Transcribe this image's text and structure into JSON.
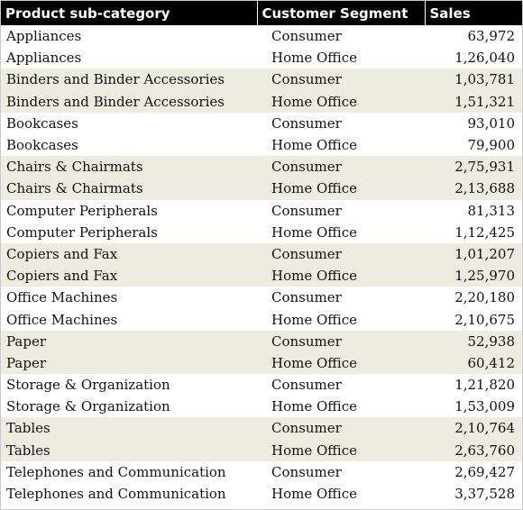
{
  "headers": {
    "subcategory": "Product sub-category",
    "segment": "Customer Segment",
    "sales": "Sales"
  },
  "rows": [
    {
      "subcategory": "Appliances",
      "segment": "Consumer",
      "sales": "63,972"
    },
    {
      "subcategory": "Appliances",
      "segment": "Home Office",
      "sales": "1,26,040"
    },
    {
      "subcategory": "Binders and Binder Accessories",
      "segment": "Consumer",
      "sales": "1,03,781"
    },
    {
      "subcategory": "Binders and Binder Accessories",
      "segment": "Home Office",
      "sales": "1,51,321"
    },
    {
      "subcategory": "Bookcases",
      "segment": "Consumer",
      "sales": "93,010"
    },
    {
      "subcategory": "Bookcases",
      "segment": "Home Office",
      "sales": "79,900"
    },
    {
      "subcategory": "Chairs & Chairmats",
      "segment": "Consumer",
      "sales": "2,75,931"
    },
    {
      "subcategory": "Chairs & Chairmats",
      "segment": "Home Office",
      "sales": "2,13,688"
    },
    {
      "subcategory": "Computer Peripherals",
      "segment": "Consumer",
      "sales": "81,313"
    },
    {
      "subcategory": "Computer Peripherals",
      "segment": "Home Office",
      "sales": "1,12,425"
    },
    {
      "subcategory": "Copiers and Fax",
      "segment": "Consumer",
      "sales": "1,01,207"
    },
    {
      "subcategory": "Copiers and Fax",
      "segment": "Home Office",
      "sales": "1,25,970"
    },
    {
      "subcategory": "Office Machines",
      "segment": "Consumer",
      "sales": "2,20,180"
    },
    {
      "subcategory": "Office Machines",
      "segment": "Home Office",
      "sales": "2,10,675"
    },
    {
      "subcategory": "Paper",
      "segment": "Consumer",
      "sales": "52,938"
    },
    {
      "subcategory": "Paper",
      "segment": "Home Office",
      "sales": "60,412"
    },
    {
      "subcategory": "Storage & Organization",
      "segment": "Consumer",
      "sales": "1,21,820"
    },
    {
      "subcategory": "Storage & Organization",
      "segment": "Home Office",
      "sales": "1,53,009"
    },
    {
      "subcategory": "Tables",
      "segment": "Consumer",
      "sales": "2,10,764"
    },
    {
      "subcategory": "Tables",
      "segment": "Home Office",
      "sales": "2,63,760"
    },
    {
      "subcategory": "Telephones and Communication",
      "segment": "Consumer",
      "sales": "2,69,427"
    },
    {
      "subcategory": "Telephones and Communication",
      "segment": "Home Office",
      "sales": "3,37,528"
    }
  ],
  "colors": {
    "header_bg": "#000000",
    "header_text": "#ffffff",
    "band_tint": "#eeebe0"
  }
}
